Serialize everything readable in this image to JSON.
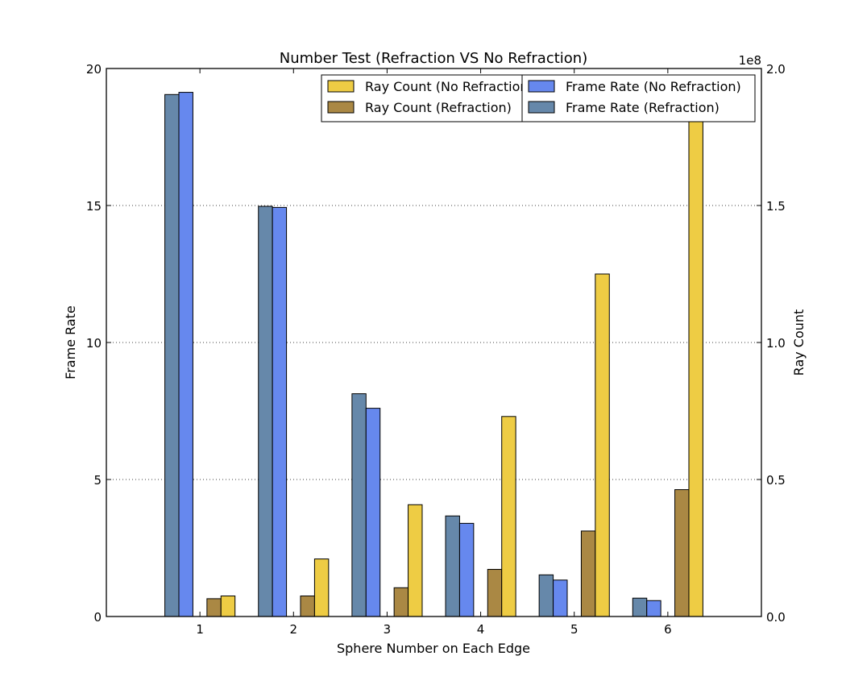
{
  "chart_data": {
    "type": "bar",
    "title": "Number Test (Refraction VS No Refraction)",
    "xlabel": "Sphere Number on Each Edge",
    "ylabel_left": "Frame Rate",
    "ylabel_right": "Ray Count",
    "right_axis_offset_label": "1e8",
    "categories": [
      "1",
      "2",
      "3",
      "4",
      "5",
      "6"
    ],
    "x": [
      1,
      2,
      3,
      4,
      5,
      6
    ],
    "xlim": [
      0,
      7
    ],
    "ylim_left": [
      0,
      20
    ],
    "ylim_right": [
      0,
      2.0
    ],
    "left_ticks": [
      "0",
      "5",
      "10",
      "15",
      "20"
    ],
    "right_ticks": [
      "0.0",
      "0.5",
      "1.0",
      "1.5",
      "2.0"
    ],
    "grid": "horizontal dotted",
    "legend_placement": "top-right",
    "series": [
      {
        "name": "Frame Rate (Refraction)",
        "axis": "left",
        "color": "#6688aa",
        "values": [
          19.05,
          14.97,
          8.13,
          3.67,
          1.52,
          0.67
        ]
      },
      {
        "name": "Frame Rate (No Refraction)",
        "axis": "left",
        "color": "#6688ee",
        "values": [
          19.13,
          14.93,
          7.6,
          3.4,
          1.33,
          0.58
        ]
      },
      {
        "name": "Ray Count (Refraction)",
        "axis": "right",
        "color": "#aa8844",
        "values": [
          0.065,
          0.075,
          0.105,
          0.172,
          0.312,
          0.463
        ]
      },
      {
        "name": "Ray Count (No Refraction)",
        "axis": "right",
        "color": "#eecc44",
        "values": [
          0.075,
          0.21,
          0.408,
          0.73,
          1.25,
          1.89
        ]
      }
    ],
    "legends": [
      {
        "entries": [
          "Ray Count (No Refraction)",
          "Ray Count (Refraction)"
        ],
        "colors": [
          "#eecc44",
          "#aa8844"
        ]
      },
      {
        "entries": [
          "Frame Rate (No Refraction)",
          "Frame Rate (Refraction)"
        ],
        "colors": [
          "#6688ee",
          "#6688aa"
        ]
      }
    ]
  }
}
